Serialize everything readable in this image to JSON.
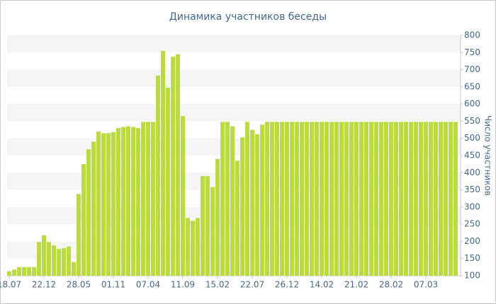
{
  "chart_data": {
    "type": "bar",
    "title": "Динамика участников беседы",
    "y_label": "Число участников",
    "categories": [
      "18.07",
      null,
      null,
      null,
      null,
      null,
      null,
      "22.12",
      null,
      null,
      null,
      null,
      null,
      null,
      "28.05",
      null,
      null,
      null,
      null,
      null,
      null,
      "01.11",
      null,
      null,
      null,
      null,
      null,
      null,
      "07.04",
      null,
      null,
      null,
      null,
      null,
      null,
      "11.09",
      null,
      null,
      null,
      null,
      null,
      null,
      "15.02",
      null,
      null,
      null,
      null,
      null,
      null,
      "22.07",
      null,
      null,
      null,
      null,
      null,
      null,
      "26.12",
      null,
      null,
      null,
      null,
      null,
      null,
      "14.02",
      null,
      null,
      null,
      null,
      null,
      null,
      "21.02",
      null,
      null,
      null,
      null,
      null,
      null,
      "28.02",
      null,
      null,
      null,
      null,
      null,
      null,
      "07.03",
      null,
      null,
      null,
      null,
      null,
      null
    ],
    "values": [
      113,
      118,
      125,
      125,
      125,
      125,
      198,
      218,
      198,
      188,
      178,
      180,
      185,
      140,
      338,
      425,
      468,
      490,
      520,
      515,
      515,
      518,
      530,
      533,
      535,
      533,
      530,
      548,
      548,
      548,
      683,
      755,
      648,
      738,
      745,
      565,
      268,
      260,
      268,
      390,
      390,
      358,
      440,
      548,
      548,
      535,
      435,
      503,
      548,
      525,
      512,
      540,
      548,
      548,
      548,
      548,
      548,
      548,
      548,
      548,
      548,
      548,
      548,
      548,
      548,
      548,
      548,
      548,
      548,
      548,
      548,
      548,
      548,
      548,
      548,
      548,
      548,
      548,
      548,
      548,
      548,
      548,
      548,
      548,
      548,
      548,
      548,
      548,
      548,
      548,
      548
    ],
    "color": "#b8dd3a",
    "ylim": [
      100,
      800
    ],
    "yticks": [
      100,
      150,
      200,
      250,
      300,
      350,
      400,
      450,
      500,
      550,
      600,
      650,
      700,
      750,
      800
    ],
    "grid": true
  }
}
